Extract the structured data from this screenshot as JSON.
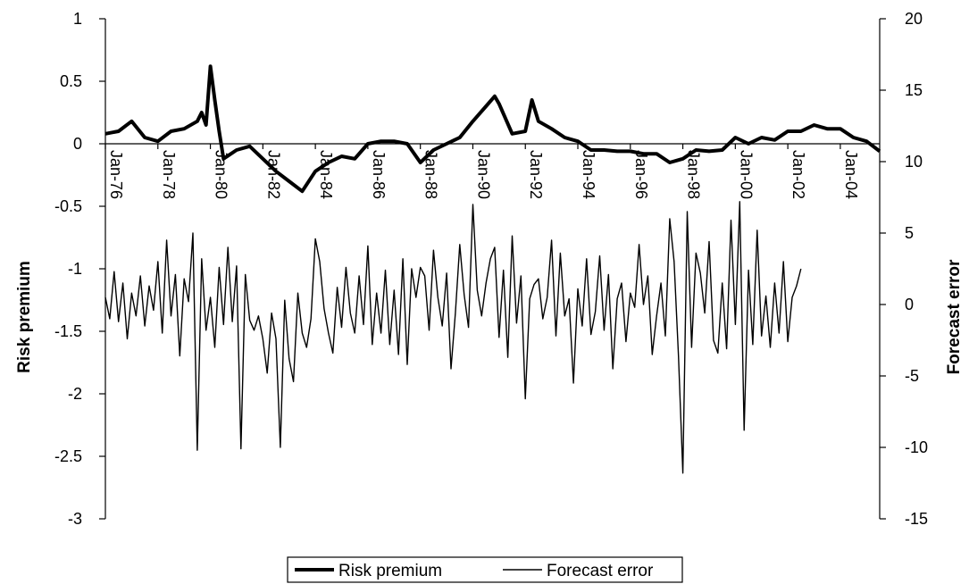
{
  "chart_data": {
    "type": "line",
    "y_left_label": "Risk premium",
    "y_right_label": "Forecast error",
    "y_left_lim": [
      -3,
      1
    ],
    "y_left_ticks": [
      "1",
      "0.5",
      "0",
      "-0.5",
      "-1",
      "-1.5",
      "-2",
      "-2.5",
      "-3"
    ],
    "y_right_lim": [
      -15,
      20
    ],
    "y_right_ticks": [
      "20",
      "15",
      "10",
      "5",
      "0",
      "-5",
      "-10",
      "-15"
    ],
    "x_range_months": [
      "Jan-76",
      "Jul-05"
    ],
    "x_ticks": [
      "Jan-76",
      "Jan-78",
      "Jan-80",
      "Jan-82",
      "Jan-84",
      "Jan-86",
      "Jan-88",
      "Jan-90",
      "Jan-92",
      "Jan-94",
      "Jan-96",
      "Jan-98",
      "Jan-00",
      "Jan-02",
      "Jan-04"
    ],
    "grid": false,
    "legend_position": "bottom-center",
    "series": [
      {
        "name": "Risk premium",
        "axis": "left",
        "points": [
          [
            "Jan-76",
            0.08
          ],
          [
            "Jul-76",
            0.1
          ],
          [
            "Jan-77",
            0.18
          ],
          [
            "Jul-77",
            0.05
          ],
          [
            "Jan-78",
            0.02
          ],
          [
            "Jul-78",
            0.1
          ],
          [
            "Jan-79",
            0.12
          ],
          [
            "Jul-79",
            0.18
          ],
          [
            "Sep-79",
            0.25
          ],
          [
            "Nov-79",
            0.15
          ],
          [
            "Jan-80",
            0.62
          ],
          [
            "Mar-80",
            0.35
          ],
          [
            "May-80",
            0.1
          ],
          [
            "Jul-80",
            -0.12
          ],
          [
            "Jan-81",
            -0.05
          ],
          [
            "Jul-81",
            -0.02
          ],
          [
            "Jan-82",
            -0.12
          ],
          [
            "Jul-82",
            -0.22
          ],
          [
            "Jan-83",
            -0.3
          ],
          [
            "Jul-83",
            -0.38
          ],
          [
            "Jan-84",
            -0.22
          ],
          [
            "Jul-84",
            -0.15
          ],
          [
            "Jan-85",
            -0.1
          ],
          [
            "Jul-85",
            -0.12
          ],
          [
            "Jan-86",
            0.0
          ],
          [
            "Jul-86",
            0.02
          ],
          [
            "Jan-87",
            0.02
          ],
          [
            "Jul-87",
            0.0
          ],
          [
            "Jan-88",
            -0.15
          ],
          [
            "Jul-88",
            -0.05
          ],
          [
            "Jan-89",
            0.0
          ],
          [
            "Jul-89",
            0.05
          ],
          [
            "Jan-90",
            0.18
          ],
          [
            "Jul-90",
            0.3
          ],
          [
            "Nov-90",
            0.38
          ],
          [
            "Jan-91",
            0.32
          ],
          [
            "Jul-91",
            0.08
          ],
          [
            "Jan-92",
            0.1
          ],
          [
            "Apr-92",
            0.35
          ],
          [
            "Jul-92",
            0.18
          ],
          [
            "Jan-93",
            0.12
          ],
          [
            "Jul-93",
            0.05
          ],
          [
            "Jan-94",
            0.02
          ],
          [
            "Jul-94",
            -0.05
          ],
          [
            "Jan-95",
            -0.05
          ],
          [
            "Jul-95",
            -0.06
          ],
          [
            "Jan-96",
            -0.06
          ],
          [
            "Jul-96",
            -0.08
          ],
          [
            "Jan-97",
            -0.08
          ],
          [
            "Jul-97",
            -0.15
          ],
          [
            "Jan-98",
            -0.12
          ],
          [
            "Jul-98",
            -0.05
          ],
          [
            "Jan-99",
            -0.06
          ],
          [
            "Jul-99",
            -0.05
          ],
          [
            "Jan-00",
            0.05
          ],
          [
            "Jul-00",
            0.0
          ],
          [
            "Jan-01",
            0.05
          ],
          [
            "Jul-01",
            0.03
          ],
          [
            "Jan-02",
            0.1
          ],
          [
            "Jul-02",
            0.1
          ],
          [
            "Jan-03",
            0.15
          ],
          [
            "Jul-03",
            0.12
          ],
          [
            "Jan-04",
            0.12
          ],
          [
            "Jul-04",
            0.05
          ],
          [
            "Jan-05",
            0.02
          ],
          [
            "Jul-05",
            -0.06
          ]
        ]
      },
      {
        "name": "Forecast error",
        "axis": "right",
        "interval_months": 2,
        "start": "Jan-76",
        "values": [
          0.5,
          -1.0,
          2.3,
          -1.2,
          1.5,
          -2.4,
          0.8,
          -0.8,
          2.0,
          -1.5,
          1.3,
          -0.4,
          3.0,
          -2.0,
          4.5,
          -0.8,
          2.1,
          -3.6,
          1.8,
          0.2,
          5.0,
          -10.2,
          3.2,
          -1.8,
          0.5,
          -3.0,
          2.6,
          -1.4,
          4.0,
          -1.2,
          2.7,
          -10.1,
          2.1,
          -1.1,
          -1.8,
          -0.8,
          -2.4,
          -4.8,
          -0.6,
          -2.4,
          -10.0,
          0.3,
          -3.8,
          -5.4,
          0.8,
          -2.0,
          -3.0,
          -1.0,
          4.6,
          3.0,
          -0.3,
          -2.0,
          -3.4,
          1.2,
          -1.6,
          2.6,
          -0.6,
          -2.0,
          2.0,
          -1.4,
          4.1,
          -2.8,
          0.8,
          -2.0,
          2.4,
          -2.8,
          1.0,
          -3.5,
          3.2,
          -4.2,
          2.5,
          0.5,
          2.6,
          2.0,
          -1.8,
          3.8,
          0.5,
          -1.5,
          2.2,
          -4.5,
          -0.6,
          4.2,
          0.7,
          -1.6,
          7.0,
          1.0,
          -0.8,
          1.5,
          3.2,
          4.0,
          -2.3,
          2.4,
          -3.7,
          4.8,
          -1.3,
          2.0,
          -6.6,
          0.4,
          1.4,
          1.8,
          -1.0,
          0.5,
          4.5,
          -2.2,
          3.6,
          -0.8,
          0.4,
          -5.5,
          1.1,
          -1.5,
          3.2,
          -2.1,
          -0.5,
          3.4,
          -1.8,
          2.1,
          -4.5,
          0.4,
          1.5,
          -2.6,
          0.8,
          -0.2,
          4.2,
          0.0,
          2.0,
          -3.5,
          -0.8,
          1.5,
          -2.2,
          6.0,
          3.0,
          -3.6,
          -11.8,
          6.5,
          -3.0,
          3.6,
          2.2,
          -0.6,
          4.4,
          -2.5,
          -3.4,
          1.5,
          -3.1,
          5.9,
          -1.4,
          7.2,
          -8.8,
          2.4,
          -2.8,
          5.2,
          -2.2,
          0.6,
          -3.0,
          1.5,
          -2.0,
          3.0,
          -2.6,
          0.5,
          1.3,
          2.5
        ]
      }
    ]
  },
  "legend": {
    "risk_premium": "Risk premium",
    "forecast_error": "Forecast error"
  }
}
